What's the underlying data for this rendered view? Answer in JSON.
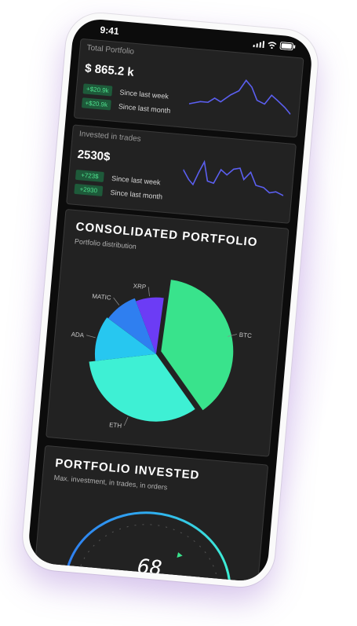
{
  "status": {
    "time": "9:41"
  },
  "total_portfolio": {
    "label": "Total Portfolio",
    "value": "$ 865.2 k",
    "rows": [
      {
        "badge": "+$20.9k",
        "text": "Since last week"
      },
      {
        "badge": "+$20.9k",
        "text": "Since last month"
      }
    ]
  },
  "invested_in_trades": {
    "label": "Invested in trades",
    "value": "2530$",
    "rows": [
      {
        "badge": "+723$",
        "text": "Since last week"
      },
      {
        "badge": "+2930",
        "text": "Since last month"
      }
    ]
  },
  "consolidated": {
    "title": "CONSOLIDATED PORTFOLIO",
    "subtitle": "Portfolio distribution",
    "chart_data": {
      "type": "pie",
      "slices": [
        {
          "label": "BTC",
          "value": 38,
          "color": "#39e38c"
        },
        {
          "label": "ETH",
          "value": 33,
          "color": "#3ef0d4"
        },
        {
          "label": "ADA",
          "value": 12,
          "color": "#27c7f0"
        },
        {
          "label": "MATIC",
          "value": 9,
          "color": "#2f7ff0"
        },
        {
          "label": "XRP",
          "value": 8,
          "color": "#6c3cf5"
        }
      ]
    }
  },
  "invested": {
    "title": "PORTFOLIO INVESTED",
    "subtitle": "Max. investment, in trades, in orders",
    "gauge_value": "68"
  },
  "colors": {
    "accent_green": "#39e38c",
    "accent_teal": "#3ef0d4",
    "accent_blue": "#2f7ff0",
    "line": "#5b5ff0"
  }
}
